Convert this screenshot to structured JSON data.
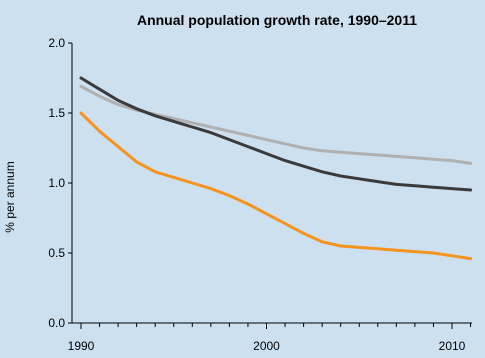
{
  "chart_data": {
    "type": "line",
    "title": "Annual population growth rate, 1990–2011",
    "xlabel": "",
    "ylabel": "% per annum",
    "xlim": [
      1990,
      2011
    ],
    "ylim": [
      0.0,
      2.0
    ],
    "x_ticks": [
      1990,
      2000,
      2010
    ],
    "x_tick_labels": [
      "1990",
      "2000",
      "2010"
    ],
    "y_ticks": [
      0.0,
      0.5,
      1.0,
      1.5,
      2.0
    ],
    "y_tick_labels": [
      "0.0",
      "0.5",
      "1.0",
      "1.5",
      "2.0"
    ],
    "grid": false,
    "legend": "none",
    "x": [
      1990,
      1991,
      1992,
      1993,
      1994,
      1995,
      1996,
      1997,
      1998,
      1999,
      2000,
      2001,
      2002,
      2003,
      2004,
      2005,
      2006,
      2007,
      2008,
      2009,
      2010,
      2011
    ],
    "series": [
      {
        "color": "#b0b0b0",
        "values": [
          1.69,
          1.62,
          1.56,
          1.52,
          1.49,
          1.46,
          1.43,
          1.4,
          1.37,
          1.34,
          1.31,
          1.28,
          1.25,
          1.23,
          1.22,
          1.21,
          1.2,
          1.19,
          1.18,
          1.17,
          1.16,
          1.14
        ]
      },
      {
        "color": "#3a3a3a",
        "values": [
          1.75,
          1.67,
          1.59,
          1.53,
          1.48,
          1.44,
          1.4,
          1.36,
          1.31,
          1.26,
          1.21,
          1.16,
          1.12,
          1.08,
          1.05,
          1.03,
          1.01,
          0.99,
          0.98,
          0.97,
          0.96,
          0.95
        ]
      },
      {
        "color": "#f5931e",
        "values": [
          1.5,
          1.37,
          1.26,
          1.15,
          1.08,
          1.04,
          1.0,
          0.96,
          0.91,
          0.85,
          0.78,
          0.71,
          0.64,
          0.58,
          0.55,
          0.54,
          0.53,
          0.52,
          0.51,
          0.5,
          0.48,
          0.46
        ]
      }
    ]
  },
  "colors": {
    "background": "#cde0f0",
    "axis": "#000000"
  }
}
